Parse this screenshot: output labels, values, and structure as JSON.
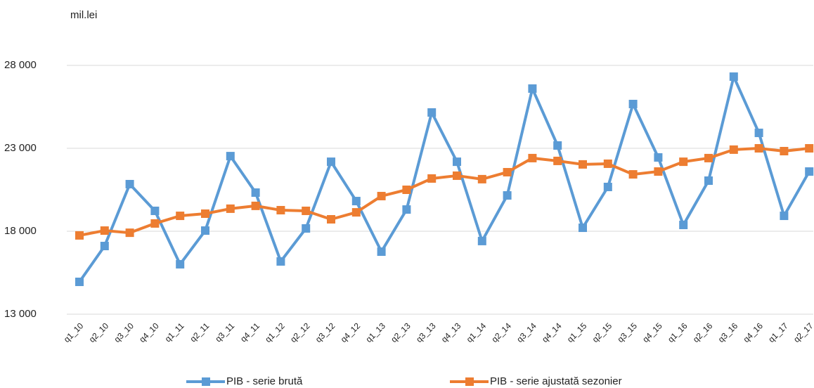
{
  "chart_data": {
    "type": "line",
    "unit_label": "mil.lei",
    "categories": [
      "q1_10",
      "q2_10",
      "q3_10",
      "q4_10",
      "q1_11",
      "q2_11",
      "q3_11",
      "q4_11",
      "q1_12",
      "q2_12",
      "q3_12",
      "q4_12",
      "q1_13",
      "q2_13",
      "q3_13",
      "q4_13",
      "q1_14",
      "q2_14",
      "q3_14",
      "q4_14",
      "q1_15",
      "q2_15",
      "q3_15",
      "q4_15",
      "q1_16",
      "q2_16",
      "q3_16",
      "q4_16",
      "q1_17",
      "q2_17"
    ],
    "series": [
      {
        "name": "PIB - serie brută",
        "color": "#5b9bd5",
        "values": [
          14950,
          17110,
          20840,
          19230,
          16010,
          18040,
          22530,
          20330,
          16180,
          18170,
          22190,
          19820,
          16770,
          19310,
          25160,
          22190,
          17410,
          20160,
          26600,
          23170,
          18210,
          20670,
          25670,
          22450,
          18380,
          21050,
          27320,
          23930,
          18930,
          21600
        ]
      },
      {
        "name": "PIB - serie ajustată sezonier",
        "color": "#ed7d31",
        "values": [
          17750,
          18040,
          17910,
          18470,
          18930,
          19060,
          19360,
          19530,
          19270,
          19230,
          18720,
          19140,
          20120,
          20500,
          21180,
          21350,
          21140,
          21560,
          22410,
          22240,
          22030,
          22070,
          21430,
          21600,
          22190,
          22410,
          22920,
          23000,
          22830,
          23000
        ]
      }
    ],
    "ylim": [
      13000,
      30000
    ],
    "yticks": [
      {
        "value": 13000,
        "label": "13 000"
      },
      {
        "value": 18000,
        "label": "18 000"
      },
      {
        "value": 23000,
        "label": "23 000"
      },
      {
        "value": 28000,
        "label": "28 000"
      }
    ],
    "grid": true
  }
}
